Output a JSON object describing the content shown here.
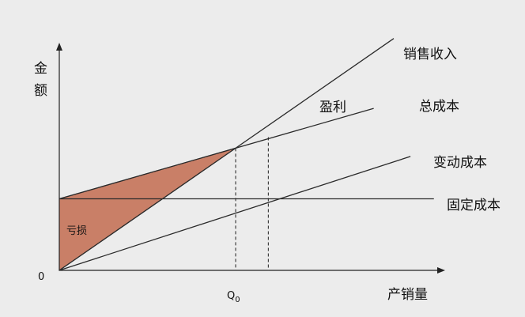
{
  "chart_data": {
    "type": "line",
    "ylabel": "金额",
    "xlabel": "产销量",
    "origin_label": "0",
    "x_tick_label": "Q",
    "x_tick_subscript": "0",
    "xlim": [
      0,
      10
    ],
    "ylim": [
      0,
      10
    ],
    "series": [
      {
        "name": "销售收入",
        "x": [
          0,
          10
        ],
        "y": [
          0,
          9.4
        ]
      },
      {
        "name": "总成本",
        "x": [
          0,
          10
        ],
        "y": [
          2.9,
          6.8
        ]
      },
      {
        "name": "变动成本",
        "x": [
          0,
          10
        ],
        "y": [
          0,
          4.4
        ]
      },
      {
        "name": "固定成本",
        "x": [
          0,
          10
        ],
        "y": [
          2.9,
          2.9
        ]
      }
    ],
    "breakeven_x": 4.5,
    "second_marker_x": 6.25,
    "regions": [
      {
        "label": "亏损",
        "color": "#c97f67"
      },
      {
        "label": "盈利"
      }
    ]
  }
}
